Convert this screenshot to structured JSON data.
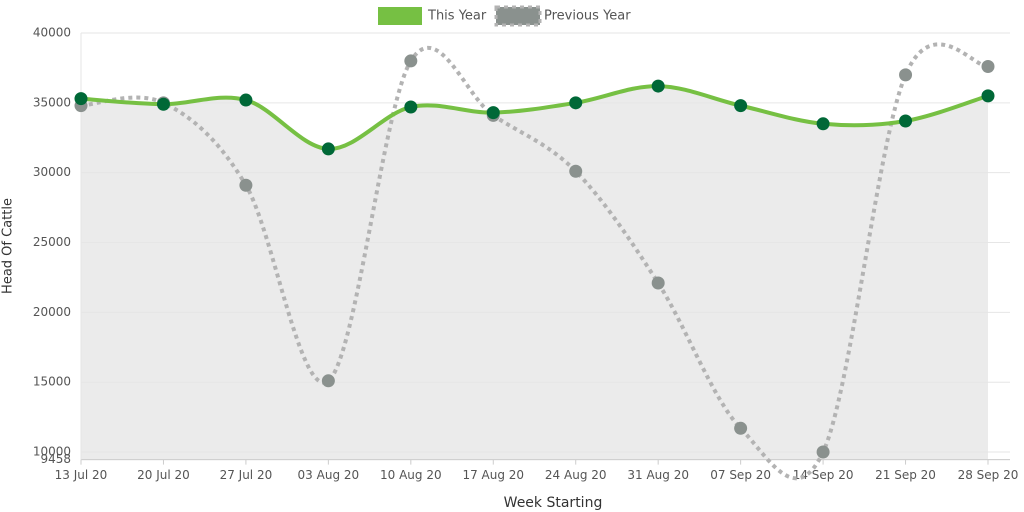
{
  "chart_data": {
    "type": "line",
    "x_label": "Week Starting",
    "y_label": "Head Of Cattle",
    "categories": [
      "13 Jul 20",
      "20 Jul 20",
      "27 Jul 20",
      "03 Aug 20",
      "10 Aug 20",
      "17 Aug 20",
      "24 Aug 20",
      "31 Aug 20",
      "07 Sep 20",
      "14 Sep 20",
      "21 Sep 20",
      "28 Sep 20"
    ],
    "series": [
      {
        "name": "This Year",
        "color": "#76c043",
        "marker_color": "#006837",
        "fill": "#ebebeb",
        "values": [
          35300,
          34900,
          35200,
          31700,
          34700,
          34300,
          35000,
          36200,
          34800,
          33500,
          33700,
          35500
        ]
      },
      {
        "name": "Previous Year",
        "color": "#b3b3b3",
        "marker_color": "#8a918e",
        "dashed": true,
        "values": [
          34800,
          35000,
          29100,
          15100,
          38000,
          34100,
          30100,
          22100,
          11700,
          10000,
          37000,
          37600
        ]
      }
    ],
    "ylim": [
      9458,
      40000
    ],
    "yticks": [
      9458,
      10000,
      15000,
      20000,
      25000,
      30000,
      35000,
      40000
    ],
    "grid": true,
    "legend": "top"
  }
}
